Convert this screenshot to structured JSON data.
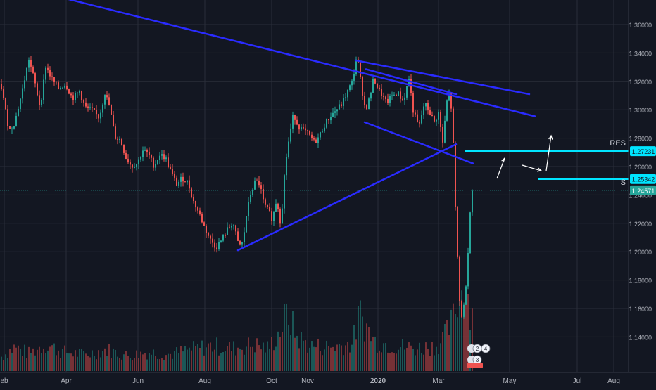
{
  "chart_data": {
    "type": "candlestick",
    "title": "",
    "xlabel": "",
    "ylabel": "",
    "x_ticks": [
      "eb",
      "Apr",
      "Jun",
      "Aug",
      "Oct",
      "Nov",
      "2020",
      "Mar",
      "May",
      "Jul",
      "Aug"
    ],
    "y_ticks": [
      "1.36000",
      "1.34000",
      "1.32000",
      "1.30000",
      "1.28000",
      "1.26000",
      "1.24000",
      "1.22000",
      "1.20000",
      "1.18000",
      "1.16000",
      "1.14000"
    ],
    "ylim": [
      1.122,
      1.375
    ],
    "grid": true,
    "price_path": [
      [
        0,
        1.318
      ],
      [
        5,
        1.305
      ],
      [
        12,
        1.286
      ],
      [
        20,
        1.292
      ],
      [
        30,
        1.312
      ],
      [
        40,
        1.335
      ],
      [
        48,
        1.32
      ],
      [
        56,
        1.302
      ],
      [
        64,
        1.33
      ],
      [
        72,
        1.322
      ],
      [
        82,
        1.315
      ],
      [
        92,
        1.318
      ],
      [
        102,
        1.308
      ],
      [
        112,
        1.313
      ],
      [
        120,
        1.302
      ],
      [
        130,
        1.3
      ],
      [
        140,
        1.295
      ],
      [
        148,
        1.312
      ],
      [
        155,
        1.302
      ],
      [
        162,
        1.282
      ],
      [
        170,
        1.28
      ],
      [
        178,
        1.268
      ],
      [
        186,
        1.262
      ],
      [
        194,
        1.264
      ],
      [
        202,
        1.273
      ],
      [
        210,
        1.27
      ],
      [
        218,
        1.262
      ],
      [
        226,
        1.27
      ],
      [
        234,
        1.268
      ],
      [
        242,
        1.258
      ],
      [
        250,
        1.25
      ],
      [
        258,
        1.254
      ],
      [
        266,
        1.251
      ],
      [
        274,
        1.238
      ],
      [
        282,
        1.23
      ],
      [
        290,
        1.22
      ],
      [
        298,
        1.212
      ],
      [
        306,
        1.207
      ],
      [
        314,
        1.212
      ],
      [
        322,
        1.219
      ],
      [
        330,
        1.224
      ],
      [
        338,
        1.208
      ],
      [
        344,
        1.21
      ],
      [
        350,
        1.232
      ],
      [
        356,
        1.245
      ],
      [
        362,
        1.252
      ],
      [
        368,
        1.25
      ],
      [
        374,
        1.236
      ],
      [
        380,
        1.232
      ],
      [
        386,
        1.226
      ],
      [
        392,
        1.24
      ],
      [
        398,
        1.222
      ],
      [
        404,
        1.262
      ],
      [
        410,
        1.282
      ],
      [
        416,
        1.298
      ],
      [
        422,
        1.29
      ],
      [
        428,
        1.287
      ],
      [
        434,
        1.285
      ],
      [
        440,
        1.282
      ],
      [
        446,
        1.278
      ],
      [
        452,
        1.282
      ],
      [
        460,
        1.29
      ],
      [
        468,
        1.296
      ],
      [
        476,
        1.3
      ],
      [
        484,
        1.304
      ],
      [
        492,
        1.312
      ],
      [
        500,
        1.32
      ],
      [
        506,
        1.338
      ],
      [
        512,
        1.318
      ],
      [
        518,
        1.3
      ],
      [
        524,
        1.308
      ],
      [
        530,
        1.322
      ],
      [
        536,
        1.315
      ],
      [
        542,
        1.31
      ],
      [
        548,
        1.305
      ],
      [
        556,
        1.31
      ],
      [
        564,
        1.312
      ],
      [
        572,
        1.306
      ],
      [
        580,
        1.322
      ],
      [
        586,
        1.3
      ],
      [
        594,
        1.288
      ],
      [
        602,
        1.305
      ],
      [
        610,
        1.298
      ],
      [
        616,
        1.292
      ],
      [
        622,
        1.298
      ],
      [
        628,
        1.278
      ],
      [
        634,
        1.306
      ],
      [
        638,
        1.312
      ],
      [
        642,
        1.292
      ],
      [
        645,
        1.245
      ],
      [
        648,
        1.21
      ],
      [
        652,
        1.17
      ],
      [
        656,
        1.158
      ],
      [
        660,
        1.175
      ],
      [
        664,
        1.205
      ],
      [
        668,
        1.24
      ],
      [
        670,
        1.2457
      ]
    ],
    "volume_path": [
      [
        0,
        22
      ],
      [
        20,
        38
      ],
      [
        40,
        28
      ],
      [
        64,
        42
      ],
      [
        90,
        30
      ],
      [
        120,
        26
      ],
      [
        150,
        34
      ],
      [
        180,
        24
      ],
      [
        210,
        30
      ],
      [
        240,
        26
      ],
      [
        270,
        34
      ],
      [
        300,
        40
      ],
      [
        330,
        36
      ],
      [
        360,
        42
      ],
      [
        380,
        36
      ],
      [
        395,
        60
      ],
      [
        408,
        92
      ],
      [
        420,
        54
      ],
      [
        440,
        40
      ],
      [
        470,
        38
      ],
      [
        500,
        44
      ],
      [
        510,
        90
      ],
      [
        530,
        48
      ],
      [
        560,
        40
      ],
      [
        590,
        36
      ],
      [
        620,
        40
      ],
      [
        632,
        56
      ],
      [
        642,
        78
      ],
      [
        650,
        120
      ],
      [
        656,
        150
      ],
      [
        662,
        130
      ],
      [
        670,
        90
      ]
    ],
    "drawn_lines": [
      {
        "name": "long-term-downtrend",
        "from": [
          85,
          1.377
        ],
        "to": [
          760,
          1.296
        ]
      },
      {
        "name": "upper-resistance",
        "from": [
          505,
          1.334
        ],
        "to": [
          752,
          1.311
        ]
      },
      {
        "name": "upper-channel",
        "from": [
          520,
          1.328
        ],
        "to": [
          648,
          1.311
        ]
      },
      {
        "name": "lower-channel",
        "from": [
          518,
          1.292
        ],
        "to": [
          672,
          1.264
        ]
      },
      {
        "name": "ascending-support",
        "from": [
          338,
          1.205
        ],
        "to": [
          648,
          1.277
        ]
      }
    ],
    "levels": [
      {
        "label": "RES",
        "value": "1.27231",
        "color": "#00e5ff"
      },
      {
        "label": "",
        "value": "1.25342",
        "color": "#00e5ff"
      },
      {
        "label": "S",
        "value": "1.24571",
        "color": "#26a69a",
        "current": true
      }
    ],
    "annotations": [
      "RES",
      "S"
    ],
    "badges": [
      {
        "top": "2",
        "right": "4"
      },
      {
        "top": "3",
        "right": ""
      }
    ],
    "colors": {
      "background": "#131722",
      "grid": "#2a2e39",
      "up": "#26a69a",
      "down": "#ef5350",
      "trendline": "#2a2bff",
      "level": "#00e5ff",
      "price_tag": "#26a69a",
      "axis_text": "#b2b5be"
    }
  }
}
